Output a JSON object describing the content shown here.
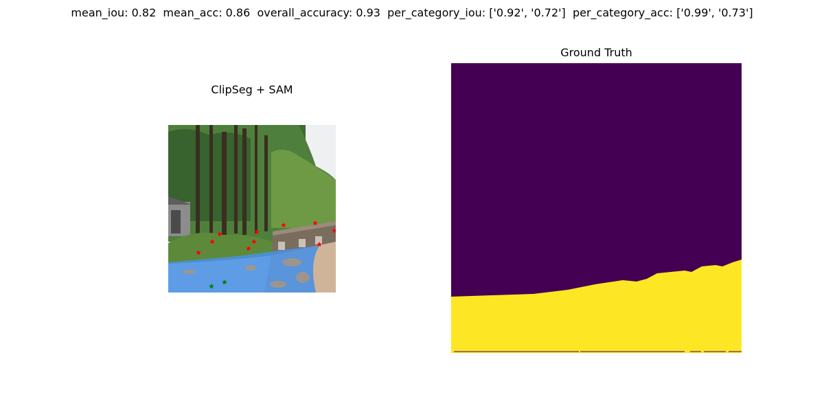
{
  "figure": {
    "metrics_title": "mean_iou: 0.82  mean_acc: 0.86  overall_accuracy: 0.93  per_category_iou: ['0.92', '0.72']  per_category_acc: ['0.99', '0.73']"
  },
  "left_panel": {
    "title": "ClipSeg + SAM",
    "colors": {
      "mask": "#4a90e2",
      "positive_point": "#ff0000",
      "negative_point": "#008000"
    },
    "icons": [
      "star-icon"
    ]
  },
  "right_panel": {
    "title": "Ground Truth",
    "colors": {
      "background_class": "#440154",
      "foreground_class": "#fde725"
    }
  }
}
